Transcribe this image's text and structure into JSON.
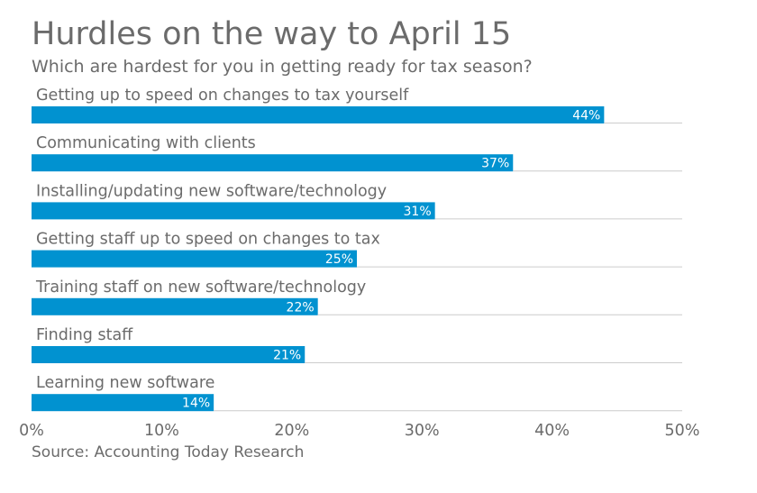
{
  "header": {
    "title": "Hurdles on the way to April 15",
    "subtitle": "Which are hardest for you in getting ready for tax season?"
  },
  "footer": {
    "source": "Source: Accounting Today Research"
  },
  "colors": {
    "bar": "#0192d0",
    "label": "#6b6b6b",
    "separator": "#cccccc",
    "value_text": "#ffffff"
  },
  "chart_data": {
    "type": "bar",
    "orientation": "horizontal",
    "title": "Hurdles on the way to April 15",
    "subtitle": "Which are hardest for you in getting ready for tax season?",
    "categories": [
      "Getting up to speed on changes to tax yourself",
      "Communicating with clients",
      "Installing/updating new software/technology",
      "Getting staff up to speed on changes to tax",
      "Training staff on new software/technology",
      "Finding staff",
      "Learning new software"
    ],
    "values": [
      44,
      37,
      31,
      25,
      22,
      21,
      14
    ],
    "value_labels": [
      "44%",
      "37%",
      "31%",
      "25%",
      "22%",
      "21%",
      "14%"
    ],
    "xlim": [
      0,
      50
    ],
    "x_ticks": [
      0,
      10,
      20,
      30,
      40,
      50
    ],
    "x_tick_labels": [
      "0%",
      "10%",
      "20%",
      "30%",
      "40%",
      "50%"
    ],
    "xlabel": "",
    "ylabel": "",
    "grid": false,
    "legend": "none"
  }
}
